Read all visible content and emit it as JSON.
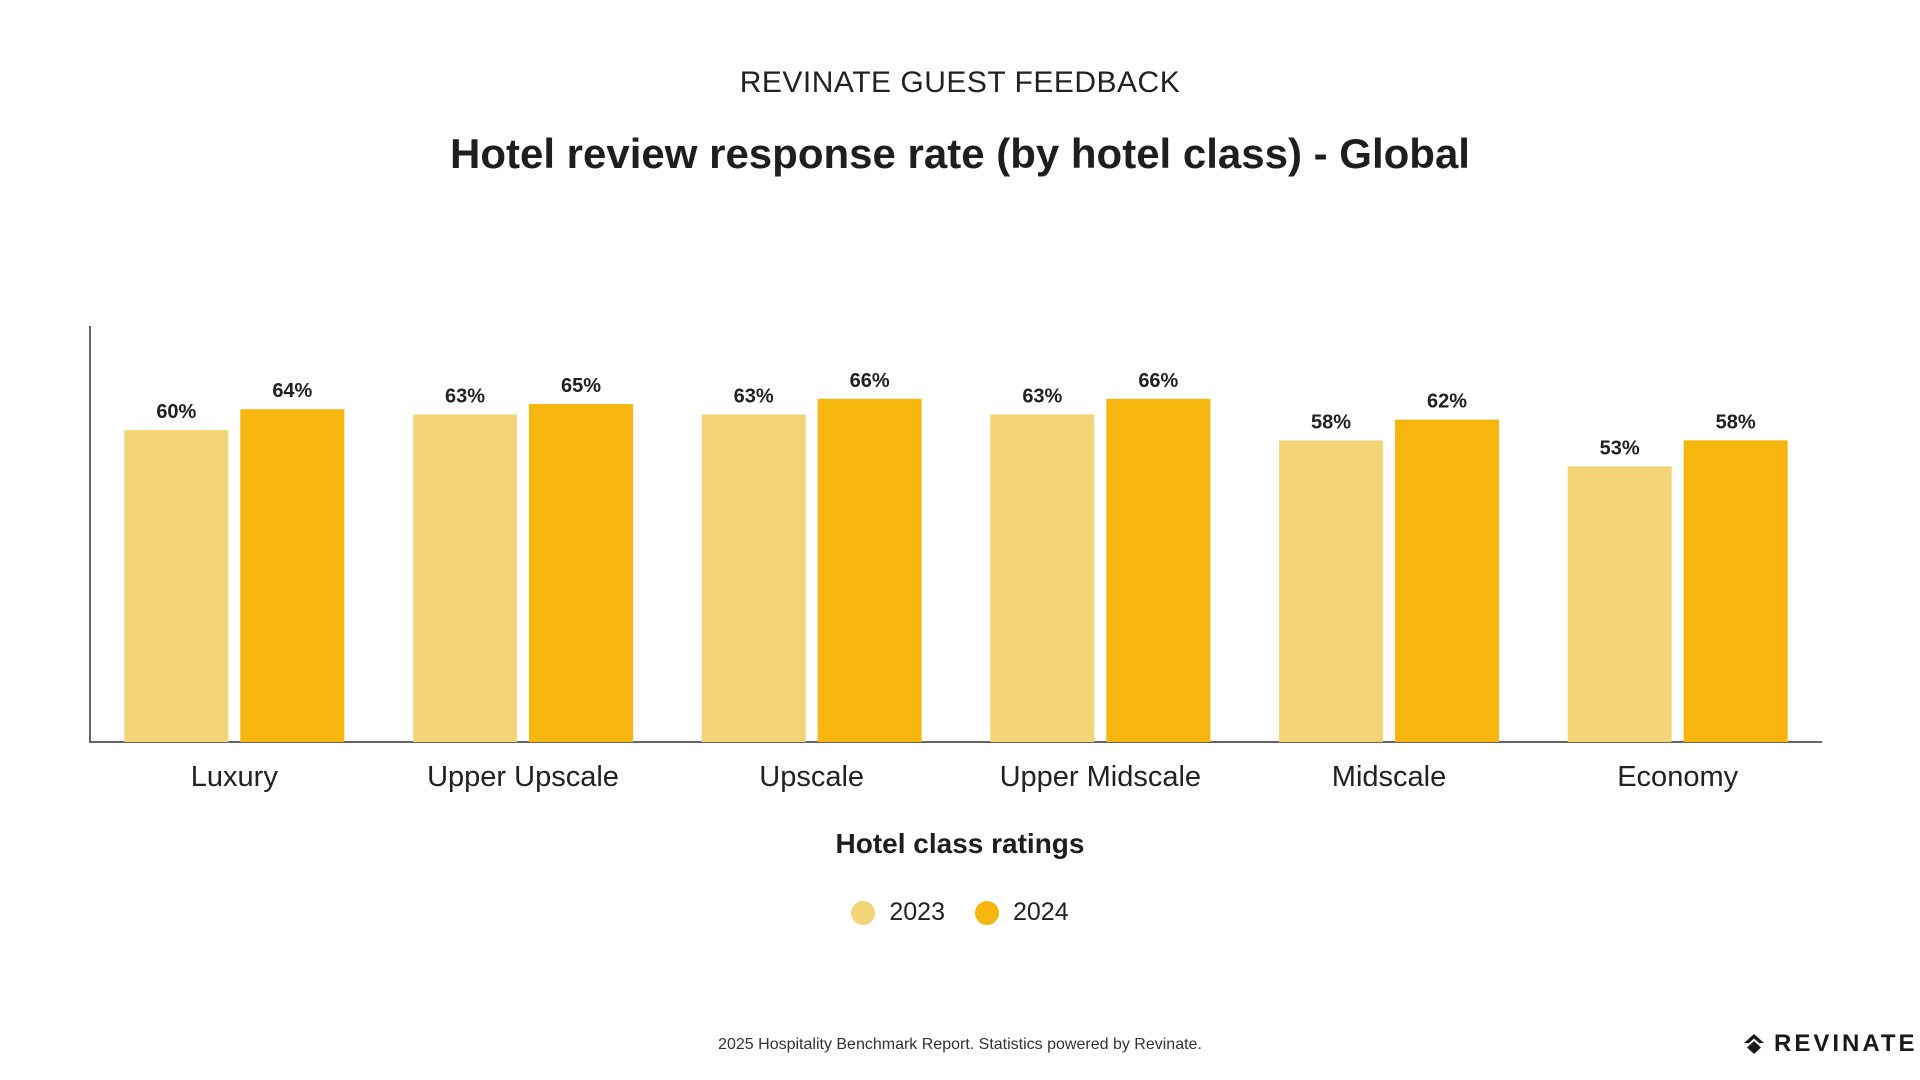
{
  "header": {
    "supertitle": "REVINATE GUEST FEEDBACK",
    "title": "Hotel review response rate (by hotel class) - Global"
  },
  "chart_data": {
    "type": "bar",
    "title": "Hotel review response rate (by hotel class) - Global",
    "xlabel": "Hotel class ratings",
    "ylabel": "",
    "categories": [
      "Luxury",
      "Upper Upscale",
      "Upscale",
      "Upper Midscale",
      "Midscale",
      "Economy"
    ],
    "series": [
      {
        "name": "2023",
        "color": "#F3D477",
        "values": [
          60,
          63,
          63,
          63,
          58,
          53
        ],
        "labels": [
          "60%",
          "63%",
          "63%",
          "63%",
          "58%",
          "53%"
        ]
      },
      {
        "name": "2024",
        "color": "#F6B60D",
        "values": [
          64,
          65,
          66,
          66,
          62,
          58
        ],
        "labels": [
          "64%",
          "65%",
          "66%",
          "66%",
          "62%",
          "58%"
        ]
      }
    ],
    "ylim": [
      0,
      80
    ],
    "grid": false,
    "legend_position": "bottom-center"
  },
  "footer": {
    "note": "2025 Hospitality Benchmark Report. Statistics powered by Revinate.",
    "brand": "REVINATE",
    "brand_icon": "revinate-logo-icon"
  }
}
